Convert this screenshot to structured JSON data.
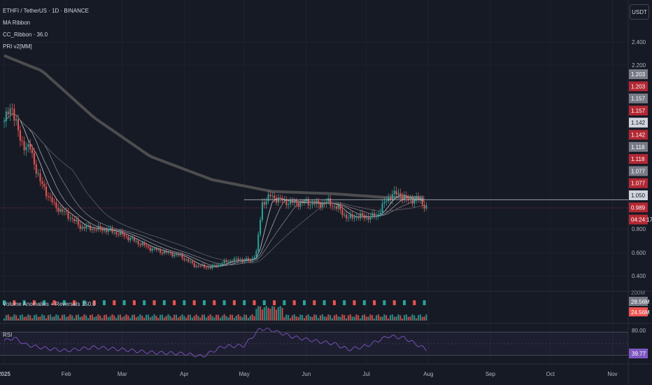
{
  "header": {
    "symbol": "ETHFI / TetherUS · 1D · BINANCE",
    "indicator_1": "MA Ribbon",
    "indicator_2": "CC_Ribbon · 36.0",
    "indicator_3": "PRI v2[MM]",
    "currency": "USDT"
  },
  "colors": {
    "background": "#161a25",
    "up": "#26a69a",
    "down": "#ef5350",
    "ma200": "#4d4d50",
    "rsi": "#7e57c2"
  },
  "chart_data": [
    {
      "type": "candlestick",
      "title": "ETHFI / TetherUS · 1D · BINANCE",
      "y_ticks": [
        "2.400",
        "2.200",
        "0.800",
        "0.600",
        "0.400"
      ],
      "x_ticks": [
        "2025",
        "Feb",
        "Mar",
        "Apr",
        "May",
        "Jun",
        "Jul",
        "Aug",
        "Sep",
        "Oct",
        "Nov"
      ],
      "close_path": [
        {
          "x": "2025-01-01",
          "y": 1.72
        },
        {
          "x": "2025-01-05",
          "y": 1.85
        },
        {
          "x": "2025-01-09",
          "y": 1.55
        },
        {
          "x": "2025-01-14",
          "y": 1.48
        },
        {
          "x": "2025-01-19",
          "y": 1.2
        },
        {
          "x": "2025-01-26",
          "y": 1.0
        },
        {
          "x": "2025-02-03",
          "y": 0.9
        },
        {
          "x": "2025-02-08",
          "y": 0.82
        },
        {
          "x": "2025-02-15",
          "y": 0.8
        },
        {
          "x": "2025-02-22",
          "y": 0.79
        },
        {
          "x": "2025-03-01",
          "y": 0.75
        },
        {
          "x": "2025-03-07",
          "y": 0.7
        },
        {
          "x": "2025-03-14",
          "y": 0.64
        },
        {
          "x": "2025-03-22",
          "y": 0.6
        },
        {
          "x": "2025-03-30",
          "y": 0.57
        },
        {
          "x": "2025-04-06",
          "y": 0.49
        },
        {
          "x": "2025-04-14",
          "y": 0.47
        },
        {
          "x": "2025-04-22",
          "y": 0.52
        },
        {
          "x": "2025-04-28",
          "y": 0.54
        },
        {
          "x": "2025-05-04",
          "y": 0.53
        },
        {
          "x": "2025-05-07",
          "y": 0.6
        },
        {
          "x": "2025-05-10",
          "y": 1.02
        },
        {
          "x": "2025-05-14",
          "y": 1.08
        },
        {
          "x": "2025-05-20",
          "y": 1.04
        },
        {
          "x": "2025-05-26",
          "y": 1.02
        },
        {
          "x": "2025-06-01",
          "y": 1.03
        },
        {
          "x": "2025-06-07",
          "y": 1.01
        },
        {
          "x": "2025-06-12",
          "y": 1.03
        },
        {
          "x": "2025-06-17",
          "y": 0.97
        },
        {
          "x": "2025-06-22",
          "y": 0.89
        },
        {
          "x": "2025-06-26",
          "y": 0.91
        },
        {
          "x": "2025-07-01",
          "y": 0.9
        },
        {
          "x": "2025-07-06",
          "y": 0.91
        },
        {
          "x": "2025-07-10",
          "y": 1.02
        },
        {
          "x": "2025-07-14",
          "y": 1.1
        },
        {
          "x": "2025-07-18",
          "y": 1.09
        },
        {
          "x": "2025-07-22",
          "y": 1.04
        },
        {
          "x": "2025-07-26",
          "y": 1.06
        },
        {
          "x": "2025-07-31",
          "y": 0.99
        }
      ],
      "ma200_path": [
        {
          "x": "2025-01-01",
          "y": 2.28
        },
        {
          "x": "2025-01-20",
          "y": 2.15
        },
        {
          "x": "2025-02-15",
          "y": 1.75
        },
        {
          "x": "2025-03-15",
          "y": 1.42
        },
        {
          "x": "2025-04-15",
          "y": 1.22
        },
        {
          "x": "2025-05-15",
          "y": 1.12
        },
        {
          "x": "2025-06-15",
          "y": 1.1
        },
        {
          "x": "2025-07-10",
          "y": 1.07
        },
        {
          "x": "2025-07-31",
          "y": 1.07
        }
      ],
      "price_line": 1.05,
      "price_labels": [
        {
          "text": "1.203",
          "kind": "gray"
        },
        {
          "text": "1.203",
          "kind": "red"
        },
        {
          "text": "1.157",
          "kind": "gray"
        },
        {
          "text": "1.157",
          "kind": "red"
        },
        {
          "text": "1.142",
          "kind": "light"
        },
        {
          "text": "1.142",
          "kind": "red"
        },
        {
          "text": "1.118",
          "kind": "gray"
        },
        {
          "text": "1.118",
          "kind": "red"
        },
        {
          "text": "1.077",
          "kind": "gray"
        },
        {
          "text": "1.077",
          "kind": "red"
        },
        {
          "text": "1.050",
          "kind": "light"
        },
        {
          "text": "0.989",
          "kind": "red"
        },
        {
          "text": "04:24:17",
          "kind": "red"
        }
      ]
    },
    {
      "type": "bar",
      "title": "Volume Anomalies + Reversals 150.0",
      "y_tick": "200M",
      "last_values": [
        "28.56M",
        "24.56M"
      ]
    },
    {
      "type": "line",
      "title": "RSI",
      "y_tick": "80.00",
      "upper_band": 70,
      "lower_band": 30,
      "last_value": "39.77",
      "path": [
        {
          "x": "2025-01-01",
          "y": 55
        },
        {
          "x": "2025-01-06",
          "y": 60
        },
        {
          "x": "2025-01-12",
          "y": 48
        },
        {
          "x": "2025-01-22",
          "y": 42
        },
        {
          "x": "2025-02-01",
          "y": 38
        },
        {
          "x": "2025-02-15",
          "y": 44
        },
        {
          "x": "2025-03-01",
          "y": 40
        },
        {
          "x": "2025-03-15",
          "y": 35
        },
        {
          "x": "2025-04-01",
          "y": 33
        },
        {
          "x": "2025-04-10",
          "y": 28
        },
        {
          "x": "2025-04-20",
          "y": 45
        },
        {
          "x": "2025-05-01",
          "y": 47
        },
        {
          "x": "2025-05-09",
          "y": 76
        },
        {
          "x": "2025-05-15",
          "y": 73
        },
        {
          "x": "2025-05-25",
          "y": 62
        },
        {
          "x": "2025-06-05",
          "y": 55
        },
        {
          "x": "2025-06-15",
          "y": 50
        },
        {
          "x": "2025-06-22",
          "y": 40
        },
        {
          "x": "2025-07-01",
          "y": 46
        },
        {
          "x": "2025-07-12",
          "y": 63
        },
        {
          "x": "2025-07-20",
          "y": 60
        },
        {
          "x": "2025-07-31",
          "y": 40
        }
      ]
    }
  ]
}
